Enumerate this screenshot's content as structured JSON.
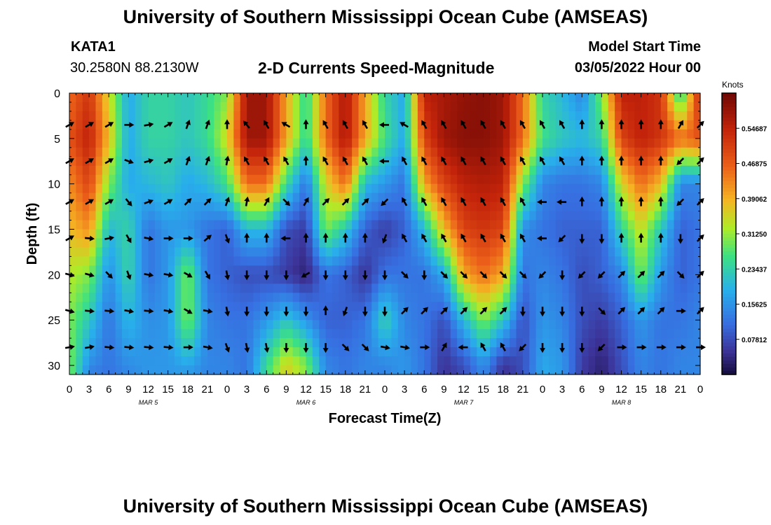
{
  "header": {
    "title": "University of Southern Mississippi Ocean Cube (AMSEAS)",
    "station_id": "KATA1",
    "station_coords": "30.2580N  88.2130W",
    "subtitle": "2-D Currents Speed-Magnitude",
    "model_start_label": "Model Start Time",
    "model_start_value": "03/05/2022 Hour 00"
  },
  "footer": {
    "title": "University of Southern Mississippi Ocean Cube (AMSEAS)"
  },
  "chart_data": {
    "type": "heatmap",
    "title": "2-D Currents Speed-Magnitude",
    "xlabel": "Forecast Time(Z)",
    "ylabel": "Depth (ft)",
    "colorbar_label": "Knots",
    "colorbar_ticks": [
      "0.07812",
      "0.15625",
      "0.23437",
      "0.31250",
      "0.39062",
      "0.46875",
      "0.54687"
    ],
    "colorbar_range": [
      0,
      0.625
    ],
    "xlim": [
      0,
      96
    ],
    "ylim": [
      31,
      0
    ],
    "x_ticks": [
      "0",
      "3",
      "6",
      "9",
      "12",
      "15",
      "18",
      "21",
      "0",
      "3",
      "6",
      "9",
      "12",
      "15",
      "18",
      "21",
      "0",
      "3",
      "6",
      "9",
      "12",
      "15",
      "18",
      "21",
      "0",
      "3",
      "6",
      "9",
      "12",
      "15",
      "18",
      "21",
      "0"
    ],
    "y_ticks": [
      "0",
      "5",
      "10",
      "15",
      "20",
      "25",
      "30"
    ],
    "day_labels": [
      {
        "label": "MAR 5",
        "hour": 12
      },
      {
        "label": "MAR 6",
        "hour": 36
      },
      {
        "label": "MAR 7",
        "hour": 60
      },
      {
        "label": "MAR 8",
        "hour": 84
      }
    ],
    "profile_hours": [
      0,
      3,
      6,
      9,
      12,
      15,
      18,
      21,
      24,
      27,
      30,
      33,
      36,
      39,
      42,
      45,
      48,
      51,
      54,
      57,
      60,
      63,
      66,
      69,
      72,
      75,
      78,
      81,
      84,
      87,
      90,
      93,
      96
    ],
    "profile_depths_ft": [
      0,
      5,
      10,
      15,
      20,
      25,
      30,
      31
    ],
    "speed_knots": [
      [
        0.45,
        0.48,
        0.42,
        0.38,
        0.33,
        0.3,
        0.3,
        0.3
      ],
      [
        0.52,
        0.55,
        0.5,
        0.42,
        0.3,
        0.22,
        0.15,
        0.13
      ],
      [
        0.35,
        0.38,
        0.3,
        0.2,
        0.15,
        0.12,
        0.12,
        0.12
      ],
      [
        0.18,
        0.18,
        0.18,
        0.24,
        0.24,
        0.2,
        0.15,
        0.14
      ],
      [
        0.24,
        0.24,
        0.2,
        0.12,
        0.12,
        0.15,
        0.16,
        0.16
      ],
      [
        0.24,
        0.24,
        0.22,
        0.16,
        0.16,
        0.16,
        0.16,
        0.16
      ],
      [
        0.22,
        0.22,
        0.18,
        0.16,
        0.3,
        0.3,
        0.18,
        0.16
      ],
      [
        0.25,
        0.25,
        0.2,
        0.12,
        0.12,
        0.14,
        0.14,
        0.14
      ],
      [
        0.3,
        0.35,
        0.26,
        0.1,
        0.1,
        0.12,
        0.14,
        0.14
      ],
      [
        0.58,
        0.58,
        0.45,
        0.2,
        0.08,
        0.12,
        0.12,
        0.12
      ],
      [
        0.58,
        0.58,
        0.45,
        0.2,
        0.08,
        0.16,
        0.25,
        0.25
      ],
      [
        0.4,
        0.4,
        0.25,
        0.08,
        0.06,
        0.22,
        0.36,
        0.36
      ],
      [
        0.24,
        0.24,
        0.12,
        0.06,
        0.03,
        0.16,
        0.3,
        0.3
      ],
      [
        0.45,
        0.45,
        0.35,
        0.3,
        0.12,
        0.1,
        0.14,
        0.14
      ],
      [
        0.57,
        0.57,
        0.45,
        0.22,
        0.1,
        0.1,
        0.12,
        0.12
      ],
      [
        0.4,
        0.4,
        0.2,
        0.1,
        0.05,
        0.12,
        0.14,
        0.14
      ],
      [
        0.24,
        0.26,
        0.16,
        0.06,
        0.12,
        0.24,
        0.14,
        0.14
      ],
      [
        0.18,
        0.18,
        0.12,
        0.1,
        0.12,
        0.14,
        0.16,
        0.16
      ],
      [
        0.55,
        0.5,
        0.4,
        0.2,
        0.12,
        0.12,
        0.12,
        0.12
      ],
      [
        0.57,
        0.58,
        0.5,
        0.38,
        0.18,
        0.08,
        0.05,
        0.05
      ],
      [
        0.59,
        0.6,
        0.55,
        0.5,
        0.4,
        0.2,
        0.08,
        0.08
      ],
      [
        0.6,
        0.6,
        0.56,
        0.52,
        0.45,
        0.3,
        0.15,
        0.15
      ],
      [
        0.58,
        0.58,
        0.55,
        0.5,
        0.4,
        0.22,
        0.05,
        0.05
      ],
      [
        0.45,
        0.45,
        0.3,
        0.15,
        0.12,
        0.08,
        0.08,
        0.08
      ],
      [
        0.24,
        0.26,
        0.14,
        0.12,
        0.14,
        0.16,
        0.18,
        0.18
      ],
      [
        0.2,
        0.22,
        0.12,
        0.1,
        0.12,
        0.14,
        0.16,
        0.16
      ],
      [
        0.14,
        0.2,
        0.12,
        0.1,
        0.08,
        0.08,
        0.06,
        0.06
      ],
      [
        0.3,
        0.24,
        0.14,
        0.1,
        0.1,
        0.06,
        0.03,
        0.03
      ],
      [
        0.55,
        0.5,
        0.35,
        0.24,
        0.14,
        0.1,
        0.08,
        0.08
      ],
      [
        0.55,
        0.55,
        0.45,
        0.35,
        0.3,
        0.16,
        0.14,
        0.14
      ],
      [
        0.52,
        0.52,
        0.38,
        0.22,
        0.16,
        0.12,
        0.12,
        0.12
      ],
      [
        0.22,
        0.45,
        0.14,
        0.1,
        0.1,
        0.12,
        0.14,
        0.14
      ],
      [
        0.55,
        0.48,
        0.14,
        0.12,
        0.12,
        0.14,
        0.14,
        0.14
      ]
    ],
    "vector_depths_ft": [
      3.5,
      7.5,
      12,
      16,
      20,
      24,
      28
    ],
    "vector_direction_deg": [
      [
        60,
        60,
        60,
        60,
        105,
        105,
        80
      ],
      [
        60,
        60,
        60,
        95,
        105,
        95,
        80
      ],
      [
        60,
        60,
        60,
        80,
        135,
        95,
        95
      ],
      [
        90,
        110,
        140,
        150,
        160,
        100,
        95
      ],
      [
        80,
        75,
        70,
        100,
        100,
        95,
        95
      ],
      [
        60,
        60,
        60,
        90,
        100,
        100,
        95
      ],
      [
        20,
        20,
        45,
        90,
        120,
        120,
        90
      ],
      [
        20,
        20,
        45,
        50,
        150,
        100,
        100
      ],
      [
        0,
        10,
        20,
        160,
        170,
        170,
        160
      ],
      [
        320,
        330,
        10,
        0,
        180,
        180,
        170
      ],
      [
        330,
        330,
        30,
        0,
        180,
        180,
        170
      ],
      [
        300,
        330,
        135,
        270,
        180,
        180,
        180
      ],
      [
        0,
        0,
        30,
        0,
        240,
        180,
        180
      ],
      [
        330,
        330,
        45,
        0,
        180,
        0,
        180
      ],
      [
        330,
        330,
        45,
        0,
        180,
        200,
        135
      ],
      [
        330,
        330,
        45,
        0,
        180,
        180,
        135
      ],
      [
        270,
        270,
        225,
        200,
        180,
        180,
        100
      ],
      [
        300,
        330,
        330,
        330,
        135,
        45,
        100
      ],
      [
        330,
        330,
        330,
        330,
        180,
        45,
        90
      ],
      [
        330,
        330,
        330,
        330,
        135,
        45,
        30
      ],
      [
        330,
        330,
        330,
        330,
        135,
        45,
        270
      ],
      [
        330,
        330,
        330,
        330,
        135,
        45,
        330
      ],
      [
        330,
        330,
        330,
        330,
        135,
        45,
        330
      ],
      [
        330,
        330,
        330,
        330,
        135,
        180,
        225
      ],
      [
        330,
        330,
        270,
        270,
        225,
        180,
        180
      ],
      [
        330,
        330,
        270,
        225,
        180,
        180,
        180
      ],
      [
        0,
        0,
        0,
        180,
        225,
        180,
        180
      ],
      [
        0,
        0,
        0,
        180,
        225,
        135,
        225
      ],
      [
        0,
        0,
        0,
        0,
        45,
        45,
        90
      ],
      [
        0,
        0,
        0,
        0,
        45,
        45,
        90
      ],
      [
        0,
        0,
        0,
        0,
        45,
        45,
        90
      ],
      [
        30,
        225,
        225,
        180,
        135,
        90,
        90
      ],
      [
        45,
        45,
        45,
        45,
        45,
        45,
        90
      ]
    ]
  }
}
